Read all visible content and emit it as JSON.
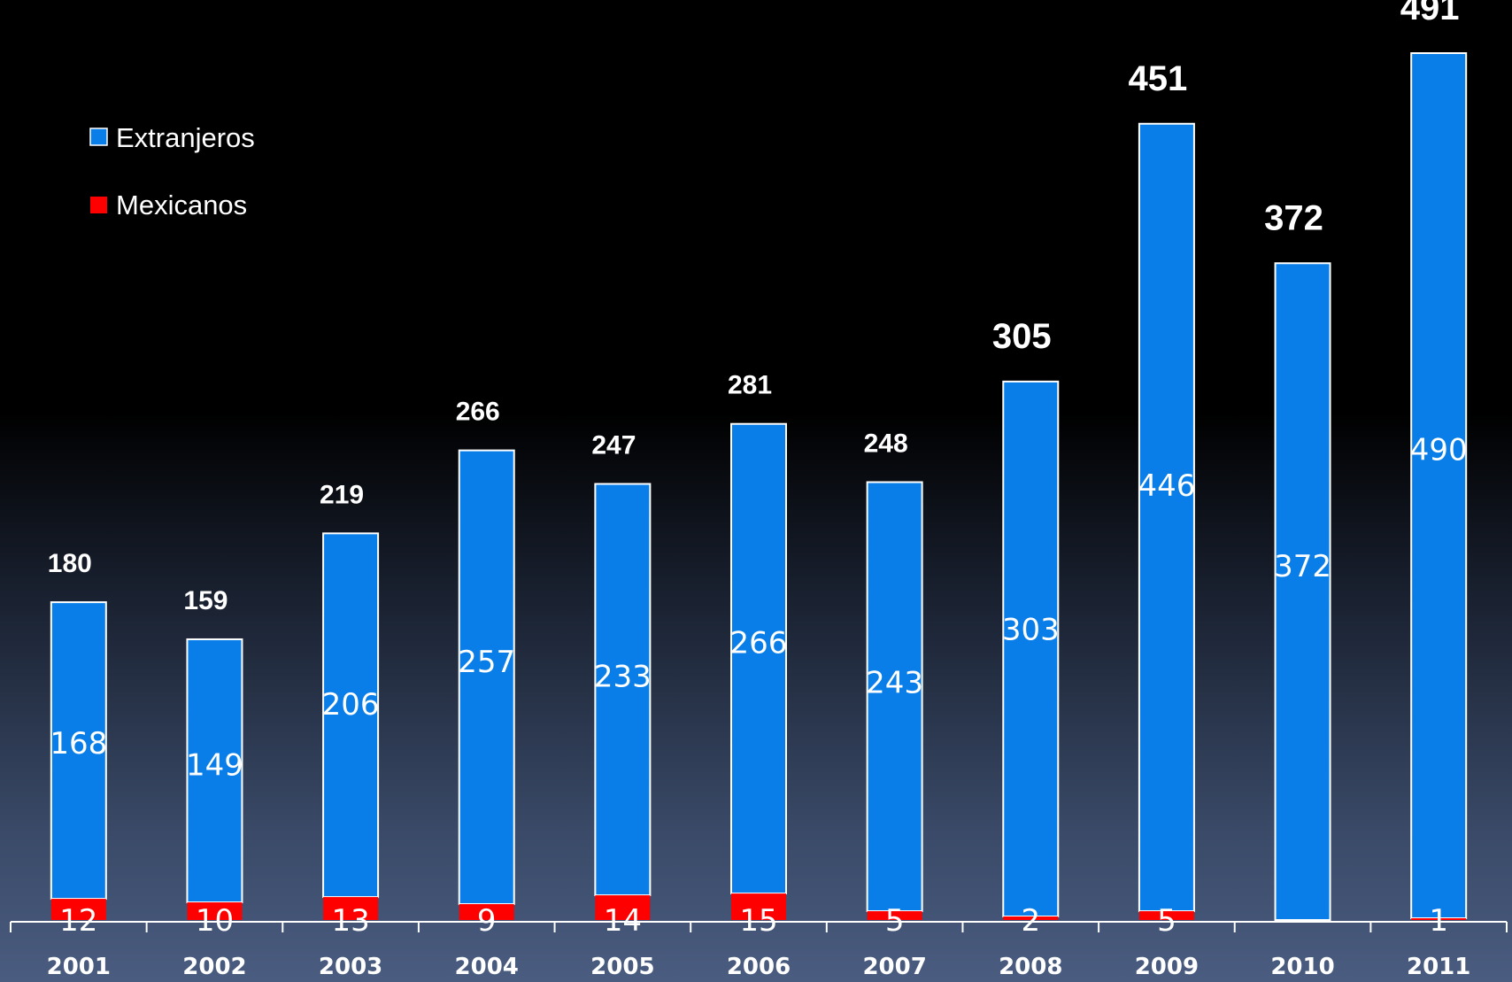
{
  "chart_data": {
    "type": "bar",
    "stacked": true,
    "categories": [
      "2001",
      "2002",
      "2003",
      "2004",
      "2005",
      "2006",
      "2007",
      "2008",
      "2009",
      "2010",
      "2011"
    ],
    "series": [
      {
        "name": "Extranjeros",
        "color": "#0a7ee8",
        "values": [
          168,
          149,
          206,
          257,
          233,
          266,
          243,
          303,
          446,
          372,
          490
        ]
      },
      {
        "name": "Mexicanos",
        "color": "#ff0000",
        "values": [
          12,
          10,
          13,
          9,
          14,
          15,
          5,
          2,
          5,
          0,
          1
        ]
      }
    ],
    "extranjeros_labels": [
      "168",
      "149",
      "206",
      "257",
      "233",
      "266",
      "243",
      "303",
      "446",
      "372",
      "490"
    ],
    "mexicanos_labels": [
      "12",
      "10",
      "13",
      "9",
      "14",
      "15",
      "5",
      "2",
      "5",
      "",
      "1"
    ],
    "totals": [
      180,
      159,
      219,
      266,
      247,
      281,
      248,
      305,
      451,
      372,
      491
    ],
    "title": "",
    "xlabel": "",
    "ylabel": "",
    "ylim": [
      0,
      491
    ],
    "grid": false,
    "legend_position": "top-left"
  }
}
